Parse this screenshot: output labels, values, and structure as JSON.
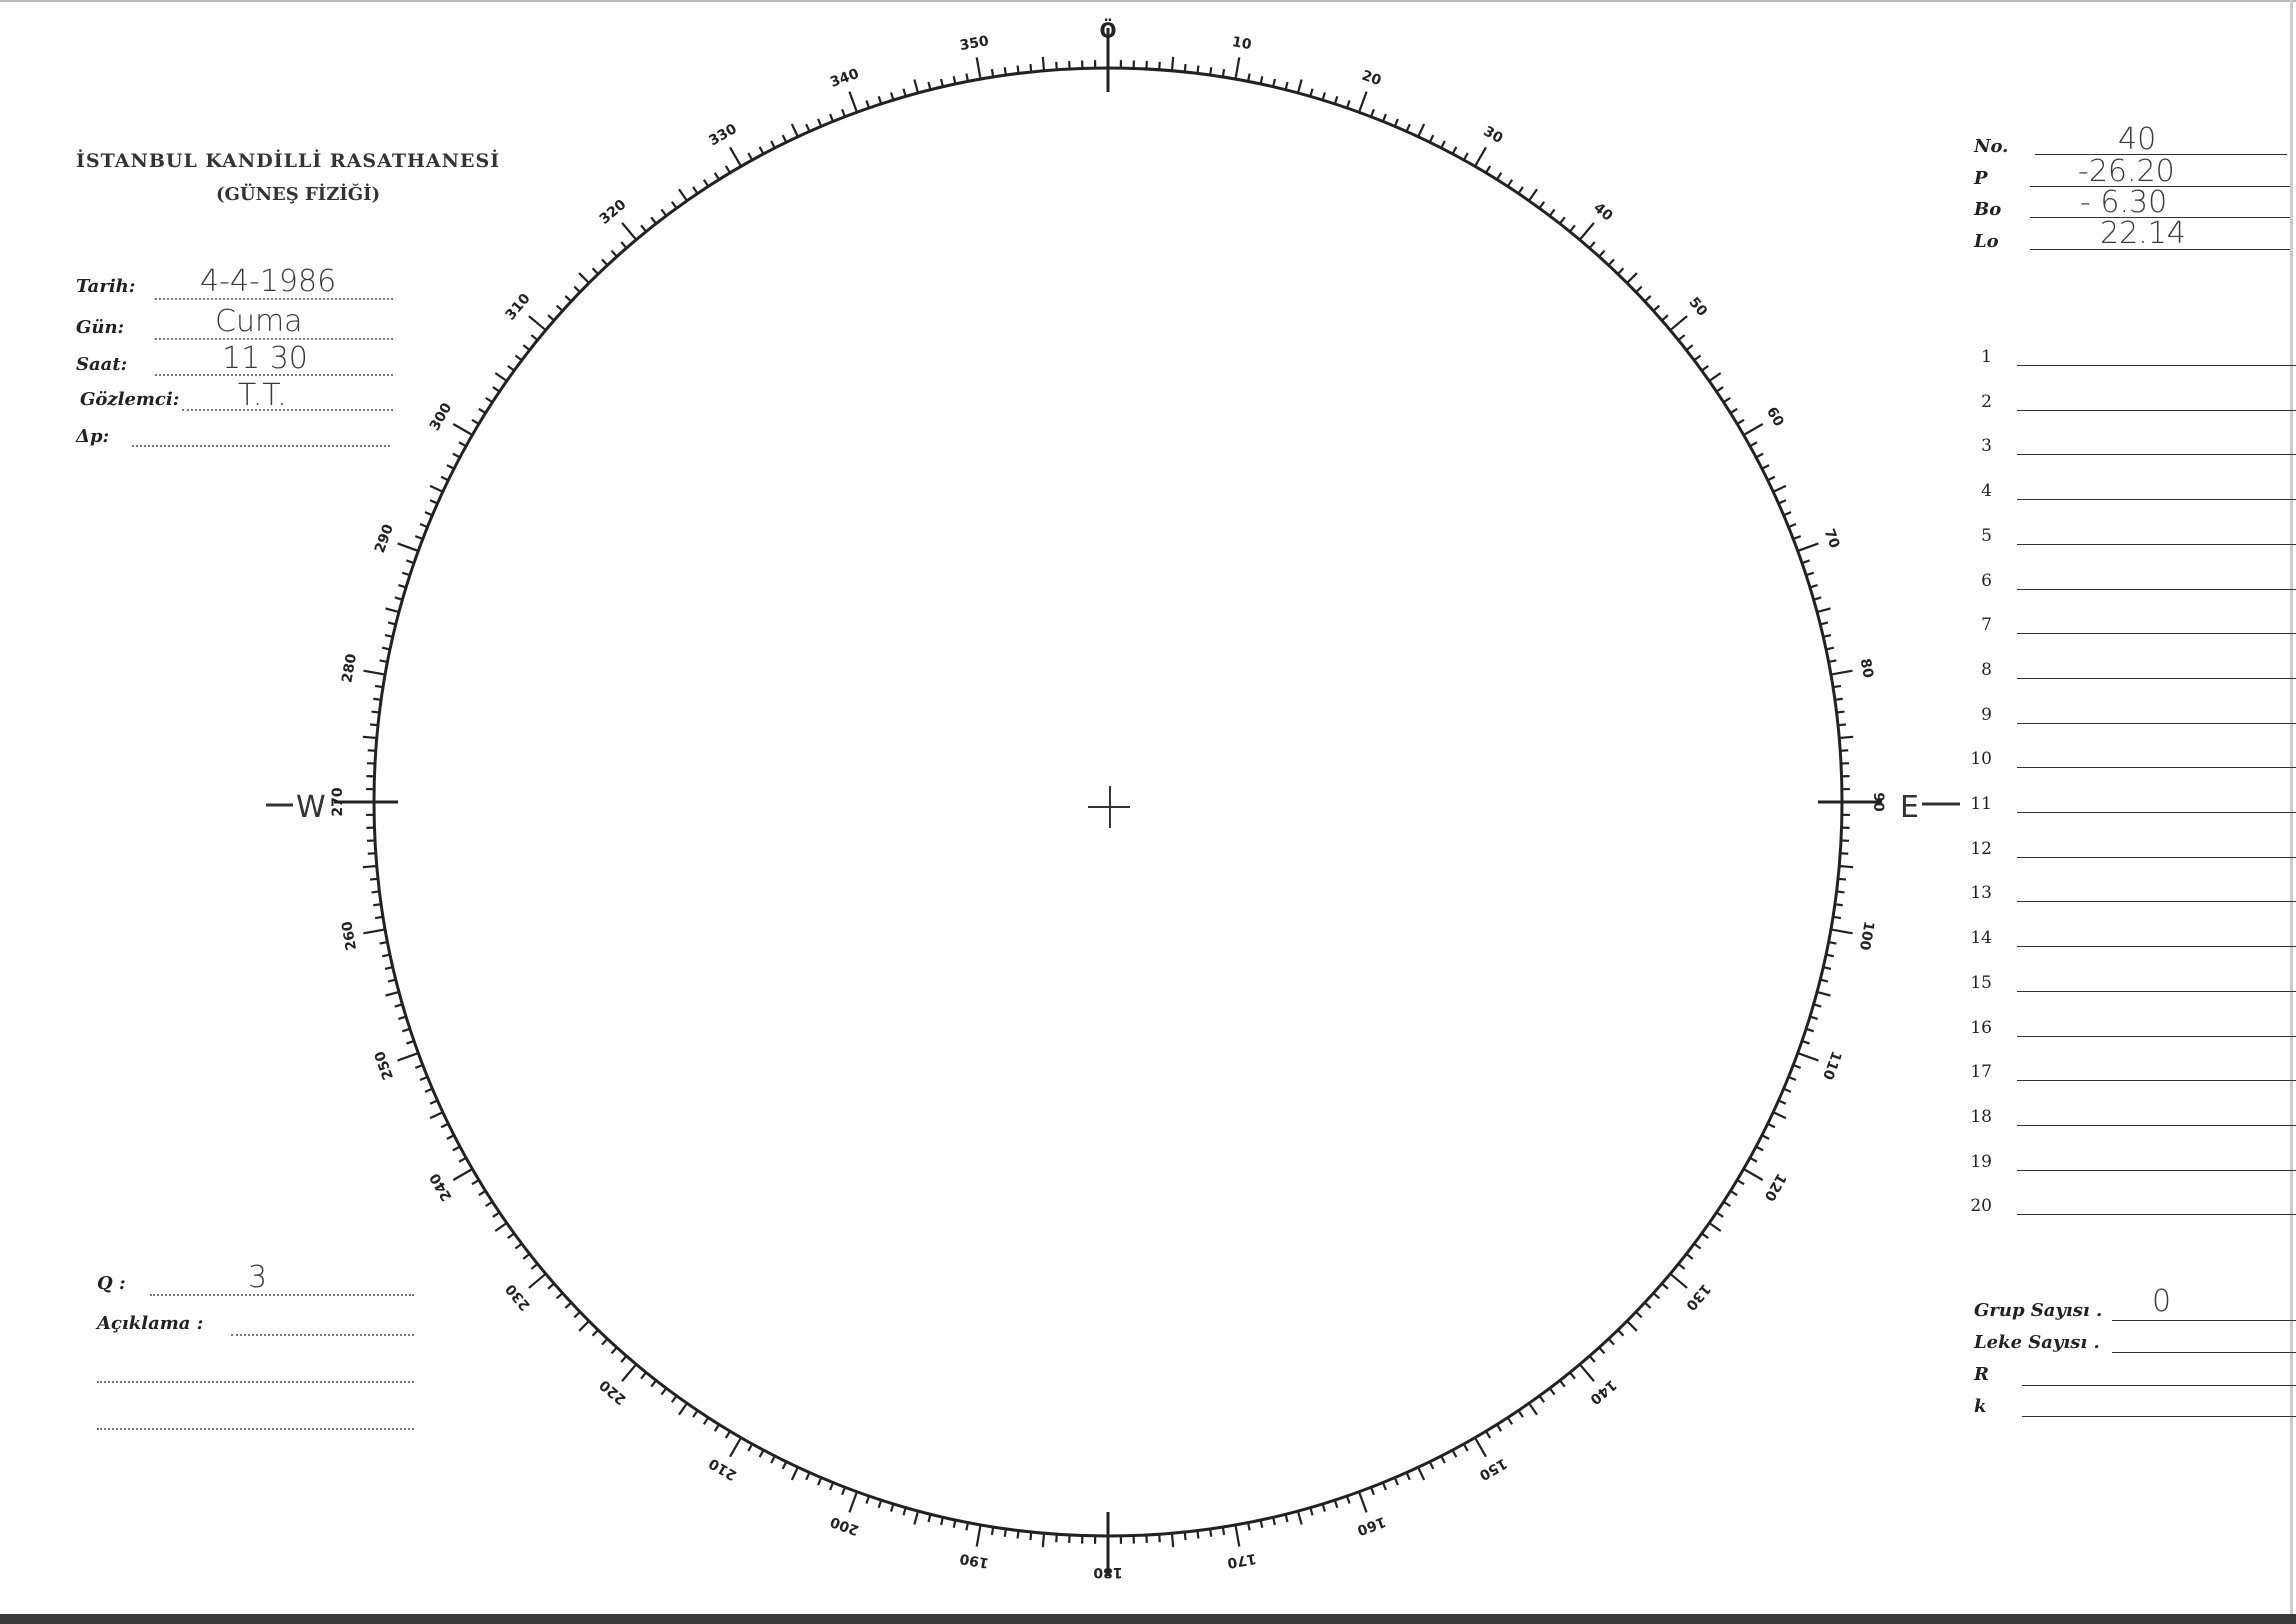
{
  "header": {
    "institution": "İSTANBUL KANDİLLİ RASATHANESİ",
    "department": "(GÜNEŞ FİZİĞİ)"
  },
  "observation": {
    "date_label": "Tarih:",
    "date_value": "4-4-1986",
    "day_label": "Gün:",
    "day_value": "Cuma",
    "time_label": "Saat:",
    "time_value": "11 30",
    "observer_label": "Gözlemci:",
    "observer_value": "T.T.",
    "delta_p_label": "Δp:",
    "delta_p_value": ""
  },
  "quality": {
    "q_label": "Q :",
    "q_value": "3",
    "notes_label": "Açıklama :",
    "notes_value": ""
  },
  "ephemeris": {
    "no_label": "No.",
    "no_value": "40",
    "p_label": "P",
    "p_value": "-26.20",
    "bo_label": "Bo",
    "bo_value": "- 6.30",
    "lo_label": "Lo",
    "lo_value": "22.14"
  },
  "rows": [
    "1",
    "2",
    "3",
    "4",
    "5",
    "6",
    "7",
    "8",
    "9",
    "10",
    "11",
    "12",
    "13",
    "14",
    "15",
    "16",
    "17",
    "18",
    "19",
    "20"
  ],
  "summary": {
    "group_count_label": "Grup Sayısı .",
    "group_count_value": "0",
    "spot_count_label": "Leke Sayısı .",
    "spot_count_value": "",
    "r_label": "R",
    "r_value": "",
    "k_label": "k",
    "k_value": ""
  },
  "dial": {
    "labels": [
      "Ö",
      "10",
      "20",
      "30",
      "40",
      "50",
      "60",
      "70",
      "80",
      "90",
      "100",
      "110",
      "120",
      "130",
      "140",
      "150",
      "160",
      "170",
      "180",
      "190",
      "200",
      "210",
      "220",
      "230",
      "240",
      "250",
      "260",
      "270",
      "280",
      "290",
      "300",
      "310",
      "320",
      "330",
      "340",
      "350"
    ],
    "east_label": "E",
    "west_label": "W"
  }
}
